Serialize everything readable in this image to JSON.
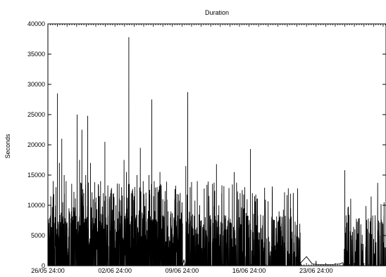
{
  "chart_data": {
    "type": "line",
    "title": "Duration",
    "xlabel": "",
    "ylabel": "Seconds",
    "ylim": [
      0,
      40000
    ],
    "xlim_days": [
      0,
      35.3
    ],
    "y_ticks": [
      0,
      5000,
      10000,
      15000,
      20000,
      25000,
      30000,
      35000,
      40000
    ],
    "x_ticks": [
      {
        "label": "26/05 24:00",
        "day": 0
      },
      {
        "label": "02/06 24:00",
        "day": 7
      },
      {
        "label": "09/06 24:00",
        "day": 14
      },
      {
        "label": "16/06 24:00",
        "day": 21
      },
      {
        "label": "23/06 24:00",
        "day": 28
      }
    ],
    "grid": false,
    "legend": "none",
    "line_color": "#000000",
    "series": [
      {
        "peaks": [
          [
            0.0,
            12000
          ],
          [
            0.3,
            11500
          ],
          [
            0.55,
            14000
          ],
          [
            0.85,
            13000
          ],
          [
            1.0,
            28500
          ],
          [
            1.2,
            17000
          ],
          [
            1.45,
            21000
          ],
          [
            1.7,
            15000
          ],
          [
            1.9,
            14000
          ],
          [
            2.2,
            9500
          ],
          [
            2.45,
            9000
          ],
          [
            2.75,
            9000
          ],
          [
            3.05,
            25000
          ],
          [
            3.3,
            17500
          ],
          [
            3.55,
            22500
          ],
          [
            3.75,
            12000
          ],
          [
            3.95,
            15000
          ],
          [
            4.15,
            24800
          ],
          [
            4.45,
            17000
          ],
          [
            4.75,
            11000
          ],
          [
            5.0,
            10500
          ],
          [
            5.25,
            9500
          ],
          [
            5.5,
            14000
          ],
          [
            5.75,
            8500
          ],
          [
            5.95,
            20500
          ],
          [
            6.25,
            11000
          ],
          [
            6.55,
            12000
          ],
          [
            6.85,
            12000
          ],
          [
            7.1,
            10000
          ],
          [
            7.4,
            9000
          ],
          [
            7.7,
            13000
          ],
          [
            7.95,
            17500
          ],
          [
            8.2,
            15500
          ],
          [
            8.45,
            37800
          ],
          [
            8.7,
            12000
          ],
          [
            9.0,
            11500
          ],
          [
            9.3,
            15000
          ],
          [
            9.65,
            19500
          ],
          [
            9.95,
            14000
          ],
          [
            10.25,
            11000
          ],
          [
            10.55,
            15000
          ],
          [
            10.85,
            27500
          ],
          [
            11.1,
            14000
          ],
          [
            11.4,
            13000
          ],
          [
            11.7,
            15500
          ],
          [
            12.0,
            11000
          ],
          [
            12.25,
            8500
          ],
          [
            12.55,
            9000
          ],
          [
            12.85,
            9000
          ],
          [
            13.15,
            8000
          ],
          [
            13.5,
            10500
          ],
          [
            14.05,
            7000
          ],
          [
            14.4,
            16500
          ],
          [
            14.6,
            28700
          ],
          [
            14.85,
            13000
          ],
          [
            15.1,
            8500
          ],
          [
            15.35,
            6000
          ],
          [
            15.6,
            14000
          ],
          [
            15.85,
            10000
          ],
          [
            16.2,
            6000
          ],
          [
            16.5,
            5500
          ],
          [
            16.75,
            4000
          ],
          [
            17.0,
            6500
          ],
          [
            17.3,
            4500
          ],
          [
            17.6,
            16800
          ],
          [
            17.85,
            10000
          ],
          [
            18.15,
            12000
          ],
          [
            18.5,
            6000
          ],
          [
            18.8,
            3000
          ],
          [
            19.15,
            7000
          ],
          [
            19.45,
            15500
          ],
          [
            19.7,
            13500
          ],
          [
            20.0,
            5000
          ],
          [
            20.3,
            12000
          ],
          [
            20.55,
            13000
          ],
          [
            20.8,
            11000
          ],
          [
            21.15,
            19300
          ],
          [
            21.35,
            12000
          ],
          [
            21.6,
            5000
          ],
          [
            21.85,
            8500
          ],
          [
            22.1,
            5500
          ],
          [
            22.3,
            3500
          ],
          [
            22.55,
            3000
          ],
          [
            22.85,
            4500
          ],
          [
            23.15,
            4000
          ],
          [
            23.5,
            3000
          ],
          [
            23.9,
            2000
          ],
          [
            24.2,
            8000
          ],
          [
            24.5,
            2500
          ],
          [
            24.8,
            3000
          ],
          [
            25.1,
            12800
          ],
          [
            25.35,
            9500
          ],
          [
            25.6,
            2000
          ],
          [
            25.9,
            1500
          ],
          [
            26.2,
            1000
          ],
          [
            31.0,
            15800
          ],
          [
            31.35,
            9000
          ],
          [
            32.05,
            6000
          ],
          [
            32.45,
            3000
          ],
          [
            32.85,
            2500
          ],
          [
            33.2,
            4000
          ],
          [
            33.7,
            2000
          ],
          [
            34.2,
            1500
          ],
          [
            35.1,
            10500
          ]
        ],
        "bursts": [
          [
            0.0,
            14.0,
            0.55
          ],
          [
            14.35,
            20.9,
            0.35
          ],
          [
            20.9,
            26.4,
            0.25
          ],
          [
            30.9,
            35.3,
            0.18
          ]
        ],
        "sparse": [
          [
            14.0,
            10500
          ],
          [
            14.2,
            1000
          ],
          [
            26.4,
            500
          ],
          [
            27.0,
            1500
          ],
          [
            27.6,
            300
          ],
          [
            28.2,
            200
          ],
          [
            29.0,
            200
          ],
          [
            29.8,
            200
          ],
          [
            30.4,
            300
          ],
          [
            30.8,
            500
          ],
          [
            35.3,
            200
          ]
        ]
      }
    ]
  }
}
